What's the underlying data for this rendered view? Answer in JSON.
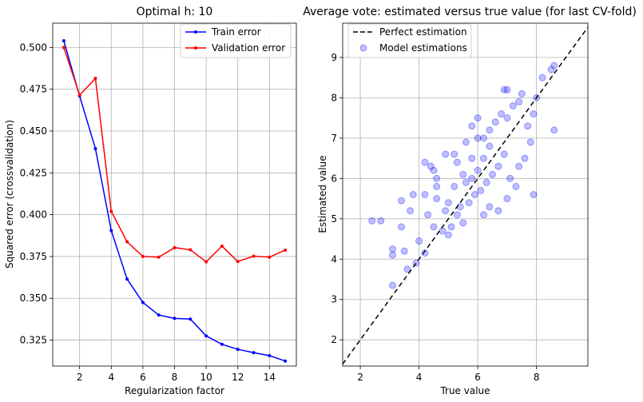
{
  "chart_data": [
    {
      "type": "line",
      "title": "Optimal h: 10",
      "xlabel": "Regularization factor",
      "ylabel": "Squared error (crossvalidation)",
      "x": [
        1,
        2,
        3,
        4,
        5,
        6,
        7,
        8,
        9,
        10,
        11,
        12,
        13,
        14,
        15
      ],
      "xticks": [
        2,
        4,
        6,
        8,
        10,
        12,
        14
      ],
      "yticks": [
        0.325,
        0.35,
        0.375,
        0.4,
        0.425,
        0.45,
        0.475,
        0.5
      ],
      "xlim": [
        0.3,
        15.7
      ],
      "ylim": [
        0.3095,
        0.5145
      ],
      "grid": true,
      "legend_position": "upper right",
      "series": [
        {
          "name": "Train error",
          "color": "#0000ff",
          "values": [
            0.504,
            0.471,
            0.4395,
            0.3905,
            0.3615,
            0.3475,
            0.34,
            0.338,
            0.3376,
            0.3275,
            0.3225,
            0.3195,
            0.3175,
            0.3157,
            0.3125
          ]
        },
        {
          "name": "Validation error",
          "color": "#ff0000",
          "values": [
            0.5,
            0.4715,
            0.4815,
            0.402,
            0.3838,
            0.375,
            0.3746,
            0.3803,
            0.379,
            0.3718,
            0.3812,
            0.372,
            0.3752,
            0.3746,
            0.3788
          ]
        }
      ]
    },
    {
      "type": "scatter",
      "title": "Average vote: estimated versus true value (for last CV-fold)",
      "xlabel": "True value",
      "ylabel": "Estimated value",
      "xticks": [
        2,
        4,
        6,
        8
      ],
      "yticks": [
        2,
        3,
        4,
        5,
        6,
        7,
        8,
        9
      ],
      "xlim": [
        1.4,
        9.75
      ],
      "ylim": [
        1.35,
        9.85
      ],
      "grid": true,
      "legend_position": "upper left",
      "reference_line": {
        "name": "Perfect estimation",
        "color": "#000000",
        "style": "dashed"
      },
      "scatter_series": {
        "name": "Model estimations",
        "color": "#0000ff",
        "alpha": 0.25,
        "points": [
          [
            2.4,
            4.95
          ],
          [
            2.7,
            4.95
          ],
          [
            3.1,
            4.25
          ],
          [
            3.1,
            4.1
          ],
          [
            3.1,
            3.35
          ],
          [
            3.5,
            4.2
          ],
          [
            3.6,
            3.75
          ],
          [
            3.4,
            4.8
          ],
          [
            3.8,
            5.6
          ],
          [
            3.9,
            3.9
          ],
          [
            3.4,
            5.45
          ],
          [
            3.7,
            5.2
          ],
          [
            4.0,
            4.45
          ],
          [
            4.2,
            4.15
          ],
          [
            4.3,
            5.1
          ],
          [
            4.5,
            4.8
          ],
          [
            4.6,
            5.5
          ],
          [
            4.8,
            4.7
          ],
          [
            4.9,
            5.2
          ],
          [
            5.0,
            4.6
          ],
          [
            4.2,
            6.4
          ],
          [
            4.4,
            6.3
          ],
          [
            4.5,
            6.2
          ],
          [
            4.6,
            5.8
          ],
          [
            4.9,
            6.6
          ],
          [
            5.2,
            6.6
          ],
          [
            5.3,
            6.4
          ],
          [
            5.5,
            6.1
          ],
          [
            5.8,
            6.5
          ],
          [
            6.0,
            7.0
          ],
          [
            4.2,
            5.6
          ],
          [
            4.6,
            6.0
          ],
          [
            5.0,
            5.4
          ],
          [
            5.2,
            5.8
          ],
          [
            5.4,
            5.3
          ],
          [
            5.6,
            5.9
          ],
          [
            5.8,
            6.0
          ],
          [
            6.0,
            6.2
          ],
          [
            6.2,
            6.5
          ],
          [
            6.4,
            6.8
          ],
          [
            5.1,
            4.8
          ],
          [
            5.3,
            5.1
          ],
          [
            5.5,
            4.9
          ],
          [
            5.7,
            5.4
          ],
          [
            5.9,
            5.6
          ],
          [
            6.1,
            5.7
          ],
          [
            6.3,
            5.9
          ],
          [
            6.5,
            6.1
          ],
          [
            6.7,
            6.3
          ],
          [
            6.9,
            6.6
          ],
          [
            5.6,
            6.9
          ],
          [
            5.8,
            7.3
          ],
          [
            6.0,
            7.5
          ],
          [
            6.2,
            7.0
          ],
          [
            6.4,
            7.2
          ],
          [
            6.6,
            7.4
          ],
          [
            6.8,
            7.6
          ],
          [
            7.0,
            7.5
          ],
          [
            7.2,
            7.8
          ],
          [
            7.4,
            7.9
          ],
          [
            6.9,
            8.2
          ],
          [
            7.0,
            8.2
          ],
          [
            7.5,
            8.1
          ],
          [
            7.7,
            7.3
          ],
          [
            7.9,
            7.6
          ],
          [
            8.0,
            8.0
          ],
          [
            8.2,
            8.5
          ],
          [
            8.5,
            8.7
          ],
          [
            8.6,
            8.8
          ],
          [
            8.6,
            7.2
          ],
          [
            7.6,
            6.5
          ],
          [
            7.8,
            6.9
          ],
          [
            7.3,
            5.8
          ],
          [
            7.0,
            5.5
          ],
          [
            6.7,
            5.2
          ],
          [
            6.4,
            5.3
          ],
          [
            6.2,
            5.1
          ],
          [
            7.9,
            5.6
          ],
          [
            7.1,
            6.0
          ],
          [
            7.4,
            6.3
          ]
        ]
      }
    }
  ]
}
